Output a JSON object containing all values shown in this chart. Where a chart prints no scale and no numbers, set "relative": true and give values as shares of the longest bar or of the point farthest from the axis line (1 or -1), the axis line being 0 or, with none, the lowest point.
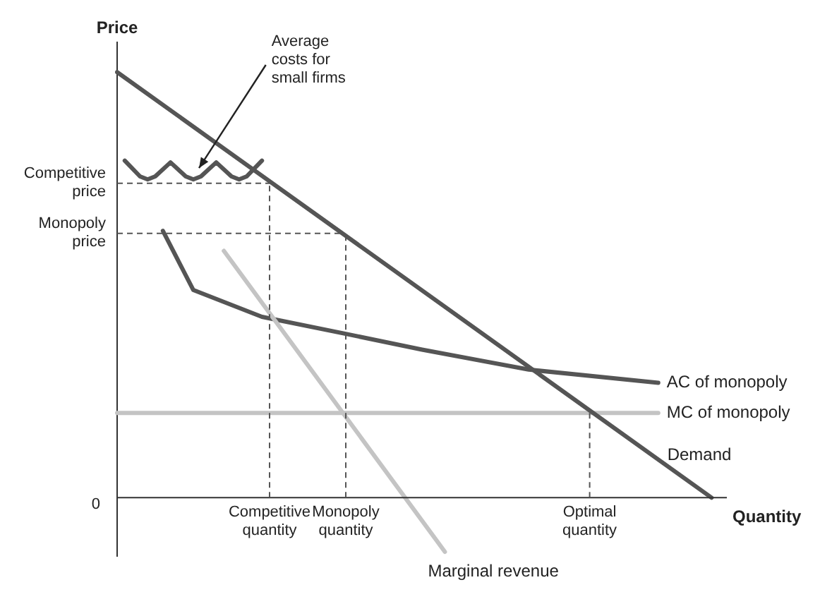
{
  "chart_data": {
    "type": "line",
    "relative": true,
    "xlabel": "Quantity",
    "ylabel": "Price",
    "tick_labels": "x",
    "grid": false,
    "legend": false,
    "marker": "none",
    "categories": [
      null,
      null,
      null,
      null,
      null,
      null,
      null,
      null,
      null,
      null,
      null,
      null,
      null,
      null,
      null,
      null,
      null,
      null,
      null,
      null,
      "Competitive\nquantity",
      null,
      null,
      null,
      null,
      null,
      null,
      null,
      null,
      null,
      "Monopoly\nquantity",
      null,
      null,
      null,
      null,
      null,
      null,
      null,
      null,
      null,
      null,
      null,
      null,
      null,
      null,
      null,
      null,
      null,
      null,
      null,
      null,
      null,
      null,
      null,
      null,
      null,
      null,
      null,
      null,
      null,
      null,
      null,
      "Optimal\nquantity",
      null,
      null,
      null,
      null,
      null,
      null,
      null,
      null,
      null,
      null,
      null,
      null,
      null,
      null,
      null,
      null,
      null,
      null
    ],
    "series": [
      {
        "name": "Demand",
        "color": "#555555",
        "values": [
          1,
          null,
          null,
          null,
          null,
          null,
          null,
          null,
          null,
          null,
          null,
          null,
          null,
          null,
          null,
          null,
          null,
          null,
          null,
          null,
          null,
          null,
          null,
          null,
          null,
          null,
          null,
          null,
          null,
          null,
          null,
          null,
          null,
          null,
          null,
          null,
          null,
          null,
          null,
          null,
          null,
          null,
          null,
          null,
          null,
          null,
          null,
          null,
          null,
          null,
          null,
          null,
          null,
          null,
          null,
          null,
          null,
          null,
          null,
          null,
          null,
          null,
          null,
          null,
          null,
          null,
          null,
          null,
          null,
          null,
          null,
          null,
          null,
          null,
          null,
          null,
          null,
          null,
          0,
          null,
          null
        ]
      },
      {
        "name": "Marginal revenue",
        "color": "#c4c4c4",
        "values": [
          null,
          null,
          null,
          null,
          null,
          null,
          null,
          null,
          null,
          null,
          null,
          null,
          null,
          null,
          0.58,
          null,
          null,
          null,
          null,
          null,
          null,
          null,
          null,
          null,
          null,
          null,
          null,
          null,
          null,
          null,
          null,
          null,
          null,
          null,
          null,
          null,
          null,
          null,
          null,
          null,
          null,
          null,
          null,
          -0.127,
          null,
          null,
          null,
          null,
          null,
          null,
          null,
          null,
          null,
          null,
          null,
          null,
          null,
          null,
          null,
          null,
          null,
          null,
          null,
          null,
          null,
          null,
          null,
          null,
          null,
          null,
          null,
          null,
          null,
          null,
          null,
          null,
          null,
          null,
          null,
          null,
          null
        ]
      },
      {
        "name": "AC of monopoly",
        "color": "#555555",
        "values": [
          null,
          null,
          null,
          null,
          null,
          null,
          0.627,
          null,
          null,
          null,
          0.488,
          null,
          null,
          null,
          null,
          null,
          null,
          null,
          null,
          0.425,
          null,
          null,
          null,
          null,
          null,
          null,
          null,
          null,
          null,
          null,
          0.385,
          null,
          null,
          null,
          null,
          null,
          null,
          null,
          null,
          null,
          0.348,
          null,
          null,
          null,
          null,
          null,
          null,
          null,
          null,
          null,
          null,
          null,
          null,
          null,
          0.301,
          null,
          null,
          null,
          null,
          null,
          null,
          null,
          null,
          null,
          null,
          null,
          null,
          null,
          null,
          null,
          null,
          0.27,
          null,
          null,
          null,
          null,
          null,
          null,
          null,
          null,
          null
        ]
      },
      {
        "name": "MC of monopoly",
        "color": "#c4c4c4",
        "values": [
          0.199,
          null,
          null,
          null,
          null,
          null,
          null,
          null,
          null,
          null,
          null,
          null,
          null,
          null,
          null,
          null,
          null,
          null,
          null,
          null,
          null,
          null,
          null,
          null,
          null,
          null,
          null,
          null,
          null,
          null,
          null,
          null,
          null,
          null,
          null,
          null,
          null,
          null,
          null,
          null,
          null,
          null,
          null,
          null,
          null,
          null,
          null,
          null,
          null,
          null,
          null,
          null,
          null,
          null,
          null,
          null,
          null,
          null,
          null,
          null,
          null,
          null,
          null,
          null,
          null,
          null,
          null,
          null,
          null,
          null,
          null,
          0.199,
          null,
          null,
          null,
          null,
          null,
          null,
          null,
          null,
          null
        ]
      },
      {
        "color": "#555555",
        "values": [
          null,
          0.792,
          null,
          0.755,
          0.748,
          0.755,
          null,
          0.788,
          null,
          0.755,
          0.748,
          0.755,
          null,
          0.788,
          null,
          0.755,
          0.748,
          0.755,
          null,
          0.792,
          null,
          null,
          null,
          null,
          null,
          null,
          null,
          null,
          null,
          null,
          null,
          null,
          null,
          null,
          null,
          null,
          null,
          null,
          null,
          null,
          null,
          null,
          null,
          null,
          null,
          null,
          null,
          null,
          null,
          null,
          null,
          null,
          null,
          null,
          null,
          null,
          null,
          null,
          null,
          null,
          null,
          null,
          null,
          null,
          null,
          null,
          null,
          null,
          null,
          null,
          null,
          null,
          null,
          null,
          null,
          null,
          null,
          null,
          null,
          null,
          null
        ]
      }
    ],
    "ref_lines": [
      {
        "axis": "y",
        "value": 0.739,
        "label": "Competitive\nprice",
        "color": "#555555",
        "line_style": "dashed"
      },
      {
        "axis": "y",
        "value": 0.621,
        "label": "Monopoly\nprice",
        "color": "#555555",
        "line_style": "dashed"
      },
      {
        "axis": "x",
        "value": "Competitive\nquantity",
        "color": "#555555",
        "line_style": "dashed"
      },
      {
        "axis": "x",
        "value": "Monopoly\nquantity",
        "color": "#555555",
        "line_style": "dashed"
      },
      {
        "axis": "x",
        "value": "Optimal\nquantity",
        "color": "#555555",
        "line_style": "dashed"
      }
    ],
    "annotations": [
      "0",
      "Average\ncosts for\nsmall firms"
    ]
  }
}
